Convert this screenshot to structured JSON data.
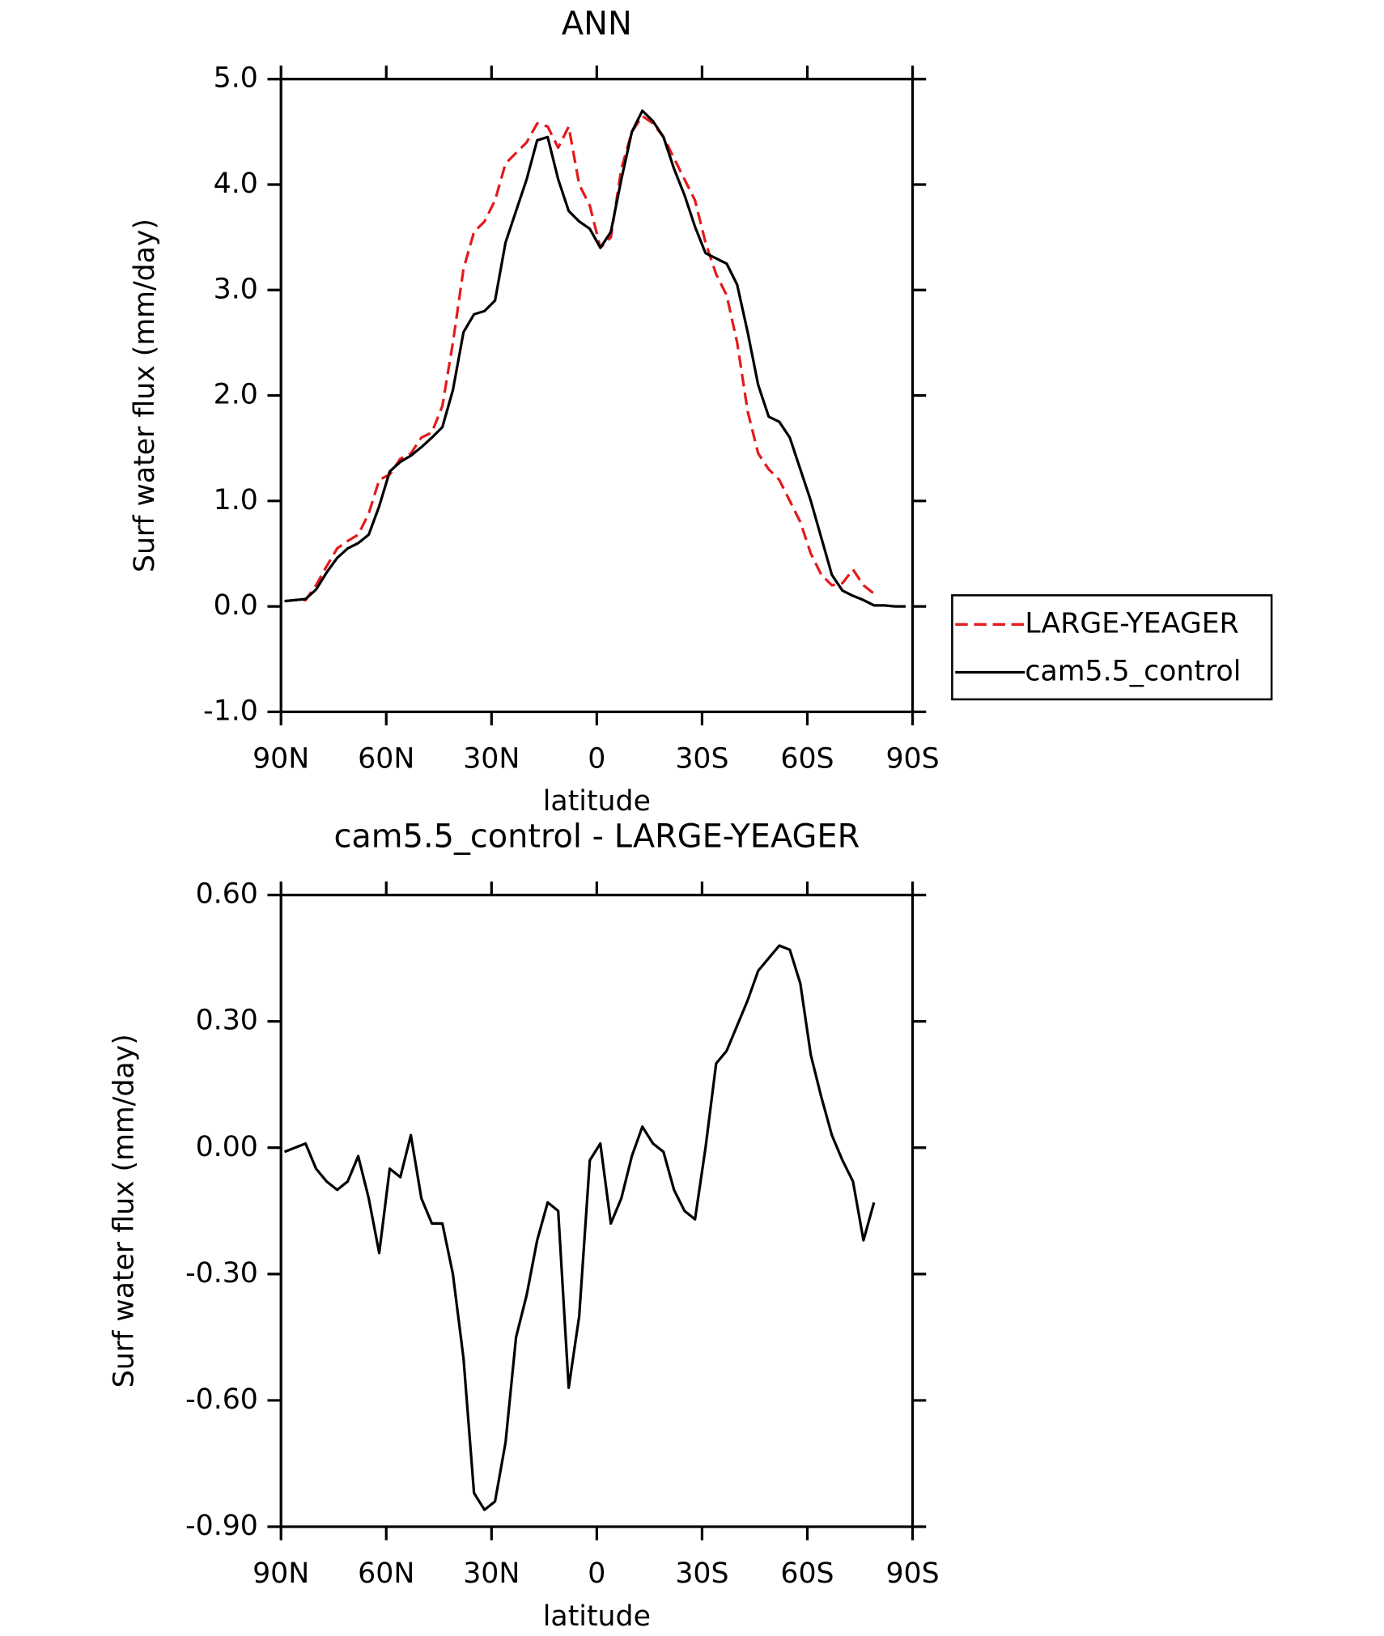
{
  "chart_data": [
    {
      "type": "line",
      "title": "ANN",
      "xlabel": "latitude",
      "ylabel": "Surf water flux (mm/day)",
      "x": [
        89,
        86,
        83,
        80,
        77,
        74,
        71,
        68,
        65,
        62,
        59,
        56,
        53,
        50,
        47,
        44,
        41,
        38,
        35,
        32,
        29,
        26,
        23,
        20,
        17,
        14,
        11,
        8,
        5,
        2,
        -1,
        -4,
        -7,
        -10,
        -13,
        -16,
        -19,
        -22,
        -25,
        -28,
        -31,
        -34,
        -37,
        -40,
        -43,
        -46,
        -49,
        -52,
        -55,
        -58,
        -61,
        -64,
        -67,
        -70,
        -73,
        -76,
        -79,
        -82,
        -85,
        -88
      ],
      "series": [
        {
          "name": "LARGE-YEAGER",
          "color": "#e41a1c",
          "linestyle": "dashed",
          "values": [
            0.05,
            0.06,
            0.06,
            0.2,
            0.38,
            0.55,
            0.62,
            0.68,
            0.88,
            1.2,
            1.25,
            1.4,
            1.45,
            1.6,
            1.65,
            1.9,
            2.5,
            3.2,
            3.55,
            3.65,
            3.85,
            4.2,
            4.3,
            4.4,
            4.58,
            4.55,
            4.35,
            4.55,
            4.0,
            3.8,
            3.4,
            3.5,
            4.15,
            4.5,
            4.65,
            4.58,
            4.45,
            4.25,
            4.05,
            3.85,
            3.45,
            3.15,
            2.95,
            2.5,
            1.85,
            1.45,
            1.3,
            1.2,
            1.0,
            0.8,
            0.5,
            0.3,
            0.2,
            0.22,
            0.35,
            0.2,
            0.12,
            null,
            null,
            null
          ]
        },
        {
          "name": "cam5.5_control",
          "color": "#000000",
          "linestyle": "solid",
          "values": [
            0.05,
            0.06,
            0.07,
            0.16,
            0.32,
            0.46,
            0.55,
            0.6,
            0.68,
            0.95,
            1.28,
            1.37,
            1.43,
            1.51,
            1.6,
            1.7,
            2.05,
            2.6,
            2.77,
            2.8,
            2.9,
            3.45,
            3.75,
            4.05,
            4.42,
            4.45,
            4.05,
            3.75,
            3.65,
            3.58,
            3.4,
            3.55,
            4.05,
            4.5,
            4.7,
            4.6,
            4.45,
            4.15,
            3.9,
            3.6,
            3.35,
            3.3,
            3.25,
            3.05,
            2.6,
            2.1,
            1.8,
            1.75,
            1.6,
            1.3,
            1.0,
            0.65,
            0.3,
            0.15,
            0.1,
            0.06,
            0.01,
            0.01,
            0.0,
            0.0
          ]
        }
      ],
      "xlim": [
        90,
        -90
      ],
      "xticks": [
        {
          "value": 90,
          "label": "90N"
        },
        {
          "value": 60,
          "label": "60N"
        },
        {
          "value": 30,
          "label": "30N"
        },
        0,
        {
          "value": -30,
          "label": "30S"
        },
        {
          "value": -60,
          "label": "60S"
        },
        {
          "value": -90,
          "label": "90S"
        }
      ],
      "ylim": [
        -1,
        5
      ],
      "yticks": [
        {
          "value": 5,
          "label": "5.0"
        },
        {
          "value": 4,
          "label": "4.0"
        },
        {
          "value": 3,
          "label": "3.0"
        },
        {
          "value": 2,
          "label": "2.0"
        },
        {
          "value": 1,
          "label": "1.0"
        },
        {
          "value": 0,
          "label": "0.0"
        },
        {
          "value": -1,
          "label": "-1.0"
        }
      ],
      "legend": "right"
    },
    {
      "type": "line",
      "title": "cam5.5_control - LARGE-YEAGER",
      "xlabel": "latitude",
      "ylabel": "Surf water flux (mm/day)",
      "x": [
        89,
        86,
        83,
        80,
        77,
        74,
        71,
        68,
        65,
        62,
        59,
        56,
        53,
        50,
        47,
        44,
        41,
        38,
        35,
        32,
        29,
        26,
        23,
        20,
        17,
        14,
        11,
        8,
        5,
        2,
        -1,
        -4,
        -7,
        -10,
        -13,
        -16,
        -19,
        -22,
        -25,
        -28,
        -31,
        -34,
        -37,
        -40,
        -43,
        -46,
        -49,
        -52,
        -55,
        -58,
        -61,
        -64,
        -67,
        -70,
        -73,
        -76,
        -79,
        -82,
        -85,
        -88
      ],
      "series": [
        {
          "color": "#000000",
          "linestyle": "solid",
          "values": [
            -0.01,
            0.0,
            0.01,
            -0.05,
            -0.08,
            -0.1,
            -0.08,
            -0.02,
            -0.12,
            -0.25,
            -0.05,
            -0.07,
            0.03,
            -0.12,
            -0.18,
            -0.18,
            -0.3,
            -0.5,
            -0.82,
            -0.86,
            -0.84,
            -0.7,
            -0.45,
            -0.35,
            -0.22,
            -0.13,
            -0.15,
            -0.57,
            -0.4,
            -0.03,
            0.01,
            -0.18,
            -0.12,
            -0.02,
            0.05,
            0.01,
            -0.01,
            -0.1,
            -0.15,
            -0.17,
            0.0,
            0.2,
            0.23,
            0.29,
            0.35,
            0.42,
            0.45,
            0.48,
            0.47,
            0.39,
            0.22,
            0.12,
            0.03,
            -0.03,
            -0.08,
            -0.22,
            -0.13,
            null,
            null,
            null
          ]
        }
      ],
      "xlim": [
        90,
        -90
      ],
      "xticks": [
        {
          "value": 90,
          "label": "90N"
        },
        {
          "value": 60,
          "label": "60N"
        },
        {
          "value": 30,
          "label": "30N"
        },
        0,
        {
          "value": -30,
          "label": "30S"
        },
        {
          "value": -60,
          "label": "60S"
        },
        {
          "value": -90,
          "label": "90S"
        }
      ],
      "ylim": [
        -0.9,
        0.6
      ],
      "yticks": [
        {
          "value": 0.6,
          "label": "0.60"
        },
        {
          "value": 0.3,
          "label": "0.30"
        },
        {
          "value": 0,
          "label": "0.00"
        },
        {
          "value": -0.3,
          "label": "-0.30"
        },
        {
          "value": -0.6,
          "label": "-0.60"
        },
        {
          "value": -0.9,
          "label": "-0.90"
        }
      ]
    }
  ]
}
